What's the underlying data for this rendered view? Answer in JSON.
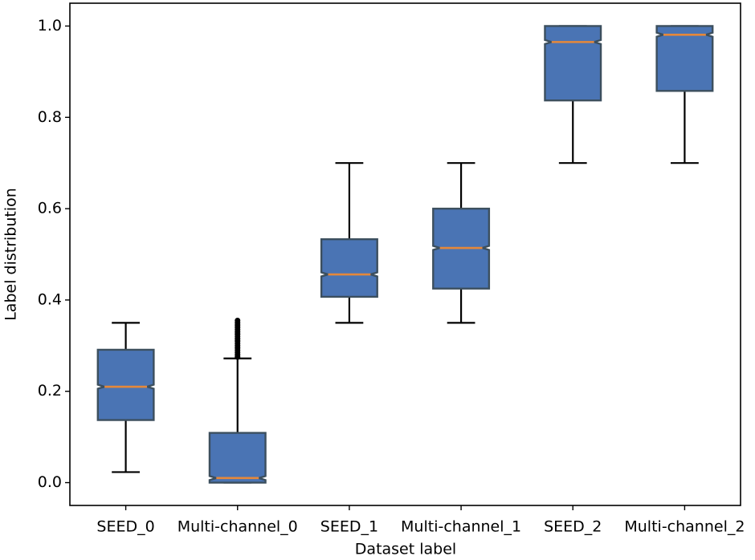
{
  "chart_data": {
    "type": "box",
    "x_label": "Dataset label",
    "y_label": "Label distribution",
    "categories": [
      "SEED_0",
      "Multi-channel_0",
      "SEED_1",
      "Multi-channel_1",
      "SEED_2",
      "Multi-channel_2"
    ],
    "boxes": [
      {
        "whislo": 0.023,
        "q1": 0.137,
        "med": 0.21,
        "q3": 0.291,
        "whishi": 0.35,
        "fliers": []
      },
      {
        "whislo": 0.0,
        "q1": 0.0,
        "med": 0.01,
        "q3": 0.109,
        "whishi": 0.272,
        "fliers": [
          0.275,
          0.28,
          0.285,
          0.29,
          0.295,
          0.3,
          0.305,
          0.31,
          0.315,
          0.32,
          0.325,
          0.33,
          0.335,
          0.34,
          0.345,
          0.35,
          0.355
        ]
      },
      {
        "whislo": 0.35,
        "q1": 0.407,
        "med": 0.456,
        "q3": 0.533,
        "whishi": 0.7,
        "fliers": []
      },
      {
        "whislo": 0.35,
        "q1": 0.425,
        "med": 0.514,
        "q3": 0.6,
        "whishi": 0.7,
        "fliers": []
      },
      {
        "whislo": 0.7,
        "q1": 0.837,
        "med": 0.965,
        "q3": 1.0,
        "whishi": 1.0,
        "fliers": []
      },
      {
        "whislo": 0.7,
        "q1": 0.858,
        "med": 0.981,
        "q3": 1.0,
        "whishi": 1.0,
        "fliers": []
      }
    ],
    "box_color": "#4a74b4",
    "median_color": "#e5883a",
    "notch": true,
    "ylim": [
      -0.05,
      1.05
    ],
    "yticks": [
      {
        "value": 0,
        "label": "0.0"
      },
      {
        "value": 0.2,
        "label": "0.2"
      },
      {
        "value": 0.4,
        "label": "0.4"
      },
      {
        "value": 0.6,
        "label": "0.6"
      },
      {
        "value": 0.8,
        "label": "0.8"
      },
      {
        "value": 1,
        "label": "1.0"
      }
    ],
    "grid": false
  }
}
